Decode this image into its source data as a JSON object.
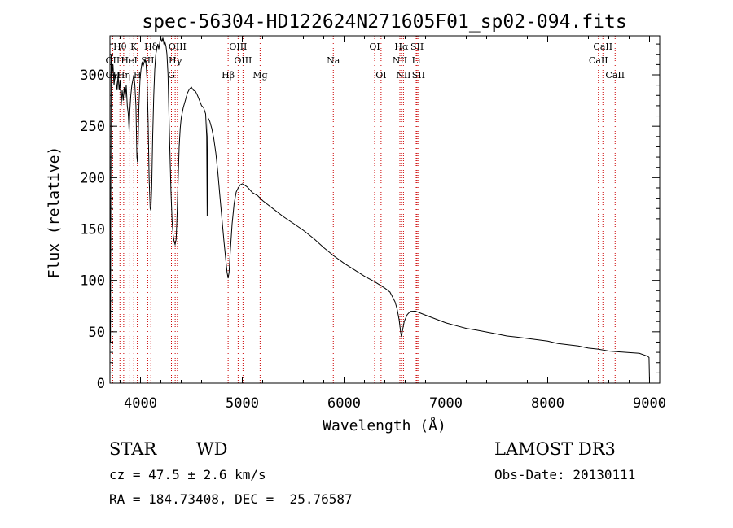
{
  "chart_data": {
    "type": "line",
    "title": "spec-56304-HD122624N271605F01_sp02-094.fits",
    "xlabel": "Wavelength (Å)",
    "ylabel": "Flux (relative)",
    "xlim": [
      3700,
      9100
    ],
    "ylim": [
      0,
      338
    ],
    "xticks": [
      4000,
      5000,
      6000,
      7000,
      8000,
      9000
    ],
    "xtick_labels": [
      "4000",
      "5000",
      "6000",
      "7000",
      "8000",
      "9000"
    ],
    "yticks": [
      0,
      50,
      100,
      150,
      200,
      250,
      300
    ],
    "ytick_labels": [
      "0",
      "50",
      "100",
      "150",
      "200",
      "250",
      "300"
    ],
    "series": [
      {
        "name": "spectrum",
        "points": [
          [
            3700,
            125
          ],
          [
            3705,
            40
          ],
          [
            3712,
            320
          ],
          [
            3720,
            300
          ],
          [
            3730,
            310
          ],
          [
            3740,
            290
          ],
          [
            3750,
            300
          ],
          [
            3760,
            295
          ],
          [
            3770,
            285
          ],
          [
            3780,
            300
          ],
          [
            3790,
            285
          ],
          [
            3800,
            295
          ],
          [
            3810,
            270
          ],
          [
            3820,
            285
          ],
          [
            3830,
            275
          ],
          [
            3840,
            288
          ],
          [
            3850,
            278
          ],
          [
            3860,
            290
          ],
          [
            3870,
            270
          ],
          [
            3880,
            262
          ],
          [
            3889,
            245
          ],
          [
            3895,
            265
          ],
          [
            3905,
            280
          ],
          [
            3915,
            290
          ],
          [
            3925,
            295
          ],
          [
            3935,
            300
          ],
          [
            3945,
            290
          ],
          [
            3955,
            270
          ],
          [
            3965,
            220
          ],
          [
            3970,
            215
          ],
          [
            3975,
            225
          ],
          [
            3985,
            270
          ],
          [
            3995,
            295
          ],
          [
            4005,
            305
          ],
          [
            4015,
            312
          ],
          [
            4025,
            308
          ],
          [
            4035,
            312
          ],
          [
            4045,
            315
          ],
          [
            4055,
            310
          ],
          [
            4065,
            295
          ],
          [
            4075,
            255
          ],
          [
            4085,
            200
          ],
          [
            4095,
            170
          ],
          [
            4102,
            168
          ],
          [
            4110,
            190
          ],
          [
            4120,
            240
          ],
          [
            4130,
            280
          ],
          [
            4140,
            305
          ],
          [
            4150,
            320
          ],
          [
            4160,
            325
          ],
          [
            4170,
            330
          ],
          [
            4180,
            325
          ],
          [
            4190,
            332
          ],
          [
            4200,
            336
          ],
          [
            4210,
            332
          ],
          [
            4220,
            336
          ],
          [
            4230,
            330
          ],
          [
            4240,
            332
          ],
          [
            4250,
            328
          ],
          [
            4260,
            320
          ],
          [
            4270,
            300
          ],
          [
            4280,
            260
          ],
          [
            4290,
            220
          ],
          [
            4300,
            185
          ],
          [
            4310,
            158
          ],
          [
            4320,
            145
          ],
          [
            4330,
            138
          ],
          [
            4340,
            135
          ],
          [
            4350,
            140
          ],
          [
            4360,
            165
          ],
          [
            4370,
            200
          ],
          [
            4380,
            230
          ],
          [
            4390,
            248
          ],
          [
            4400,
            258
          ],
          [
            4420,
            268
          ],
          [
            4440,
            275
          ],
          [
            4460,
            282
          ],
          [
            4480,
            286
          ],
          [
            4500,
            288
          ],
          [
            4520,
            285
          ],
          [
            4540,
            284
          ],
          [
            4560,
            280
          ],
          [
            4580,
            275
          ],
          [
            4600,
            270
          ],
          [
            4620,
            268
          ],
          [
            4640,
            262
          ],
          [
            4650,
            240
          ],
          [
            4655,
            163
          ],
          [
            4660,
            240
          ],
          [
            4665,
            258
          ],
          [
            4680,
            255
          ],
          [
            4700,
            248
          ],
          [
            4720,
            238
          ],
          [
            4740,
            224
          ],
          [
            4760,
            205
          ],
          [
            4780,
            182
          ],
          [
            4800,
            160
          ],
          [
            4820,
            138
          ],
          [
            4840,
            118
          ],
          [
            4850,
            108
          ],
          [
            4861,
            102
          ],
          [
            4870,
            108
          ],
          [
            4880,
            125
          ],
          [
            4900,
            155
          ],
          [
            4920,
            175
          ],
          [
            4940,
            186
          ],
          [
            4960,
            190
          ],
          [
            4980,
            193
          ],
          [
            5000,
            194
          ],
          [
            5020,
            192
          ],
          [
            5050,
            190
          ],
          [
            5100,
            186
          ],
          [
            5150,
            182
          ],
          [
            5200,
            178
          ],
          [
            5300,
            170
          ],
          [
            5400,
            162
          ],
          [
            5500,
            155
          ],
          [
            5600,
            148
          ],
          [
            5700,
            140
          ],
          [
            5800,
            131
          ],
          [
            5900,
            123
          ],
          [
            6000,
            116
          ],
          [
            6100,
            110
          ],
          [
            6200,
            104
          ],
          [
            6300,
            99
          ],
          [
            6400,
            93
          ],
          [
            6450,
            88
          ],
          [
            6500,
            80
          ],
          [
            6520,
            72
          ],
          [
            6540,
            62
          ],
          [
            6555,
            50
          ],
          [
            6563,
            46
          ],
          [
            6570,
            50
          ],
          [
            6590,
            60
          ],
          [
            6620,
            66
          ],
          [
            6650,
            69
          ],
          [
            6700,
            71
          ],
          [
            6800,
            67
          ],
          [
            6900,
            63
          ],
          [
            7000,
            59
          ],
          [
            7100,
            56
          ],
          [
            7200,
            53
          ],
          [
            7300,
            51
          ],
          [
            7400,
            49
          ],
          [
            7500,
            47
          ],
          [
            7600,
            45
          ],
          [
            7700,
            44
          ],
          [
            7800,
            43
          ],
          [
            7900,
            42
          ],
          [
            8000,
            41
          ],
          [
            8100,
            39
          ],
          [
            8200,
            38
          ],
          [
            8300,
            37
          ],
          [
            8400,
            35
          ],
          [
            8500,
            34
          ],
          [
            8600,
            32
          ],
          [
            8700,
            31
          ],
          [
            8800,
            30
          ],
          [
            8900,
            29
          ],
          [
            8980,
            27
          ],
          [
            8995,
            25
          ],
          [
            9000,
            2
          ]
        ]
      }
    ],
    "lines": [
      {
        "label": "Hθ",
        "x": 3798,
        "row": 1
      },
      {
        "label": "OII",
        "x": 3727,
        "row": 2
      },
      {
        "label": "OII",
        "x": 3727,
        "row": 3
      },
      {
        "label": "Hη",
        "x": 3835,
        "row": 3
      },
      {
        "label": "HeI",
        "x": 3889,
        "row": 2
      },
      {
        "label": "K",
        "x": 3934,
        "row": 1
      },
      {
        "label": "H",
        "x": 3969,
        "row": 3
      },
      {
        "label": "Hδ",
        "x": 4102,
        "row": 1
      },
      {
        "label": "SII",
        "x": 4071,
        "row": 2
      },
      {
        "label": "OIII",
        "x": 4363,
        "row": 1
      },
      {
        "label": "Hγ",
        "x": 4341,
        "row": 2
      },
      {
        "label": "G",
        "x": 4304,
        "row": 3
      },
      {
        "label": "OIII",
        "x": 4959,
        "row": 1
      },
      {
        "label": "OIII",
        "x": 5007,
        "row": 2
      },
      {
        "label": "Hβ",
        "x": 4861,
        "row": 3
      },
      {
        "label": "Mg",
        "x": 5175,
        "row": 3
      },
      {
        "label": "Na",
        "x": 5894,
        "row": 2
      },
      {
        "label": "OI",
        "x": 6300,
        "row": 1
      },
      {
        "label": "OI",
        "x": 6363,
        "row": 3
      },
      {
        "label": "Hα",
        "x": 6563,
        "row": 1
      },
      {
        "label": "SII",
        "x": 6717,
        "row": 1
      },
      {
        "label": "NII",
        "x": 6548,
        "row": 2
      },
      {
        "label": "Li",
        "x": 6708,
        "row": 2
      },
      {
        "label": "NII",
        "x": 6583,
        "row": 3
      },
      {
        "label": "SII",
        "x": 6731,
        "row": 3
      },
      {
        "label": "CaII",
        "x": 8542,
        "row": 1
      },
      {
        "label": "CaII",
        "x": 8498,
        "row": 2
      },
      {
        "label": "CaII",
        "x": 8662,
        "row": 3
      }
    ]
  },
  "info": {
    "class_label": "STAR",
    "subclass_label": "WD",
    "survey": "LAMOST DR3",
    "cz": "cz = 47.5 ± 2.6 km/s",
    "obs_date": "Obs-Date: 20130111",
    "coords": "RA = 184.73408, DEC =  25.76587"
  },
  "colors": {
    "spectrum": "#000000",
    "line_marker": "#cc0000",
    "axis": "#000000"
  }
}
